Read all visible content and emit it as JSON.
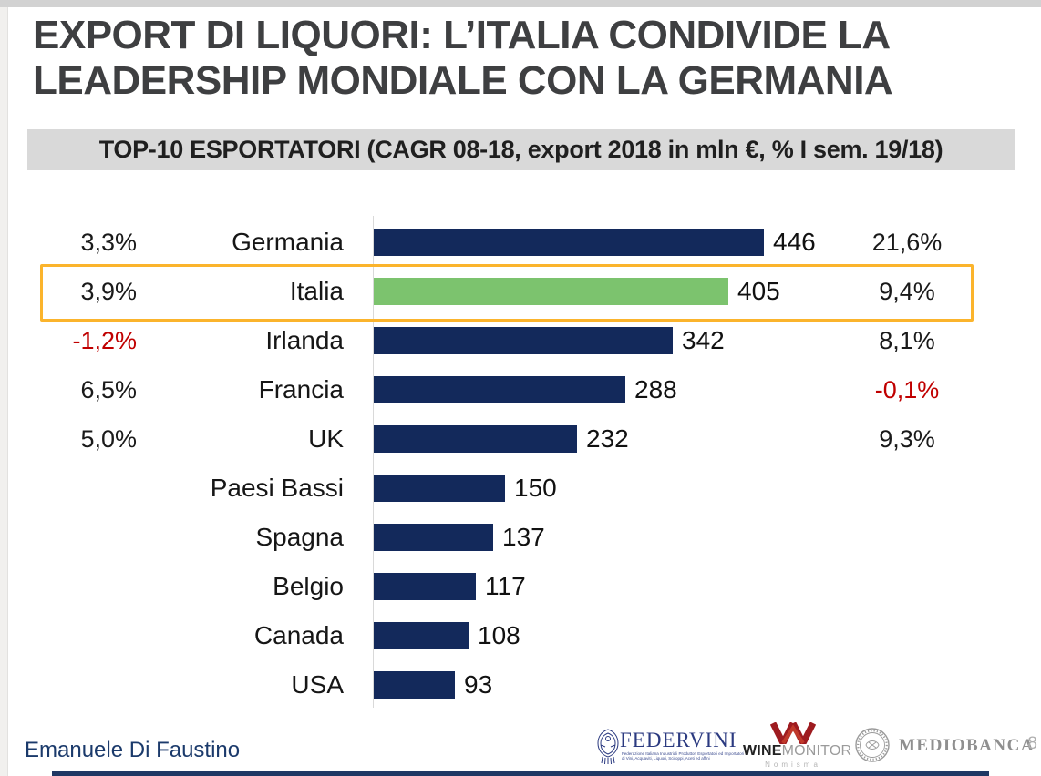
{
  "slide": {
    "title": "EXPORT DI LIQUORI: L’ITALIA CONDIVIDE LA LEADERSHIP MONDIALE CON LA GERMANIA",
    "title_line1": "EXPORT DI LIQUORI: L’ITALIA CONDIVIDE LA",
    "title_line2": "LEADERSHIP MONDIALE CON LA GERMANIA",
    "subtitle": "TOP-10 ESPORTATORI (CAGR 08-18, export 2018 in mln €, % I sem. 19/18)",
    "author": "Emanuele Di Faustino",
    "page_number": "8"
  },
  "chart_data": {
    "type": "bar",
    "orientation": "horizontal",
    "title": "TOP-10 ESPORTATORI (CAGR 08-18, export 2018 in mln €, % I sem. 19/18)",
    "unit": "export 2018 in mln €",
    "categories": [
      "Germania",
      "Italia",
      "Irlanda",
      "Francia",
      "UK",
      "Paesi Bassi",
      "Spagna",
      "Belgio",
      "Canada",
      "USA"
    ],
    "values": [
      446,
      405,
      342,
      288,
      232,
      150,
      137,
      117,
      108,
      93
    ],
    "value_labels": [
      "446",
      "405",
      "342",
      "288",
      "232",
      "150",
      "137",
      "117",
      "108",
      "93"
    ],
    "cagr_08_18": [
      "3,3%",
      "3,9%",
      "-1,2%",
      "6,5%",
      "5,0%",
      "",
      "",
      "",
      "",
      ""
    ],
    "pct_first_sem_19_18": [
      "21,6%",
      "9,4%",
      "8,1%",
      "-0,1%",
      "9,3%",
      "",
      "",
      "",
      "",
      ""
    ],
    "highlighted_category": "Italia",
    "xlim": [
      0,
      446
    ],
    "grid": false,
    "legend": false,
    "colors": {
      "bar": "#13295B",
      "highlight_bar": "#7CC36E",
      "highlight_box_border": "#FBB42C",
      "negative_text": "#C00000"
    }
  },
  "footer_logos": {
    "federvini": {
      "name": "FEDERVINI",
      "tagline_line1": "Federazione Italiana Industriali Produttori Esportatori ed Importatori",
      "tagline_line2": "di Vini, Acquaviti, Liquori, Sciroppi, Aceti ed affini"
    },
    "winemonitor": {
      "name_bold": "WINE",
      "name_light": "MONITOR",
      "subtext": "Nomisma"
    },
    "mediobanca": {
      "name": "MEDIOBANCA"
    }
  }
}
